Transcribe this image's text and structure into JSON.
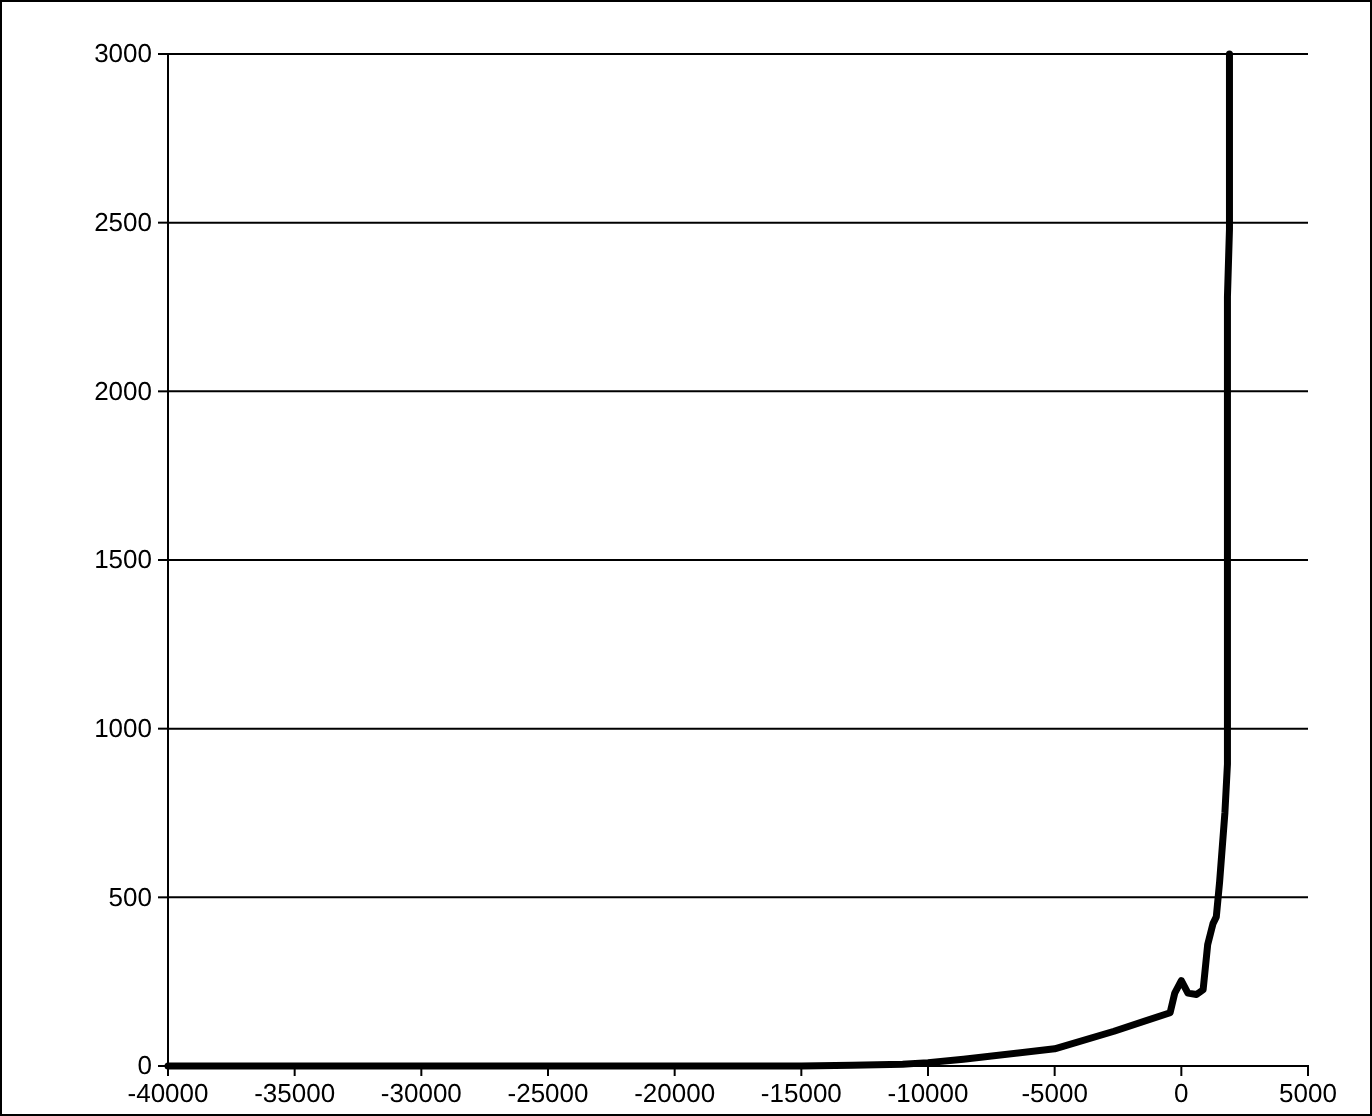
{
  "chart_data": {
    "type": "line",
    "x": [
      -40000,
      -32000,
      -25000,
      -15000,
      -13000,
      -11000,
      -10000,
      -8600,
      -5000,
      -2656,
      -443,
      -260,
      0,
      260,
      600,
      860,
      1040,
      1250,
      1380,
      1510,
      1720,
      1820,
      1820,
      1820,
      1900,
      1900
    ],
    "series": [
      {
        "color": "#000000",
        "values": [
          0,
          0,
          0,
          0,
          2,
          5,
          10,
          20,
          51,
          103,
          158,
          216,
          253,
          216,
          212,
          226,
          360,
          422,
          442,
          545,
          751,
          895,
          1163,
          2280,
          2480,
          3000
        ]
      }
    ],
    "xlim": [
      -40000,
      5000
    ],
    "xticks": [
      -40000,
      -35000,
      -30000,
      -25000,
      -20000,
      -15000,
      -10000,
      -5000,
      0,
      5000
    ],
    "ylim": [
      0,
      3000
    ],
    "yticks": [
      0,
      500,
      1000,
      1500,
      2000,
      2500,
      3000
    ],
    "grid": "y",
    "marker": "none",
    "line_style": "solid"
  }
}
